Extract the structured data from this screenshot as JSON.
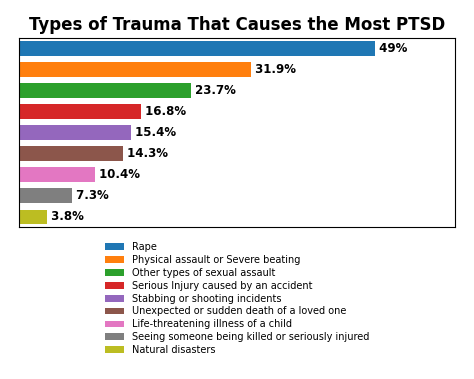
{
  "chart_data": {
    "type": "bar",
    "orientation": "horizontal",
    "title": "Types of Trauma That Causes the Most PTSD",
    "categories": [
      "Rape",
      "Physical assault or Severe beating",
      "Other types of sexual assault",
      "Serious Injury caused by an accident",
      "Stabbing or shooting incidents",
      "Unexpected or sudden death of a loved one",
      "Life-threatening illness of a child",
      "Seeing someone being killed or seriously injured",
      "Natural disasters"
    ],
    "values": [
      49.0,
      31.9,
      23.7,
      16.8,
      15.4,
      14.3,
      10.4,
      7.3,
      3.8
    ],
    "value_labels": [
      "49%",
      "31.9%",
      "23.7%",
      "16.8%",
      "15.4%",
      "14.3%",
      "10.4%",
      "7.3%",
      "3.8%"
    ],
    "data_labels": true,
    "xlim": [
      0,
      60
    ],
    "tick_labels": false,
    "legend": "upper center"
  }
}
